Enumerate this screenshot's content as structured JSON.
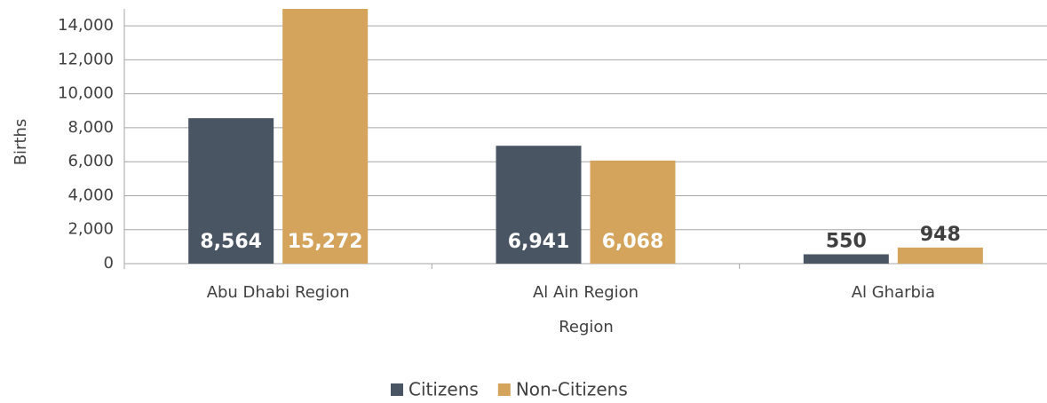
{
  "chart_data": {
    "type": "bar",
    "x_label": "Region",
    "y_label": "Births",
    "categories": [
      "Abu Dhabi Region",
      "Al Ain Region",
      "Al Gharbia"
    ],
    "series": [
      {
        "name": "Citizens",
        "color": "#4a5563",
        "values": [
          8564,
          6941,
          550
        ],
        "value_labels": [
          "8,564",
          "6,941",
          "550"
        ]
      },
      {
        "name": "Non-Citizens",
        "color": "#d4a35c",
        "values": [
          15272,
          6068,
          948
        ],
        "value_labels": [
          "15,272",
          "6,068",
          "948"
        ]
      }
    ],
    "ylim": [
      0,
      15000
    ],
    "yticks": [
      0,
      {
        "value": 2000,
        "label": "2,000"
      },
      {
        "value": 4000,
        "label": "4,000"
      },
      {
        "value": 6000,
        "label": "6,000"
      },
      {
        "value": 8000,
        "label": "8,000"
      },
      {
        "value": 10000,
        "label": "10,000"
      },
      {
        "value": 12000,
        "label": "12,000"
      },
      {
        "value": 14000,
        "label": "14,000"
      }
    ],
    "grid": true,
    "legend": "bottom"
  }
}
